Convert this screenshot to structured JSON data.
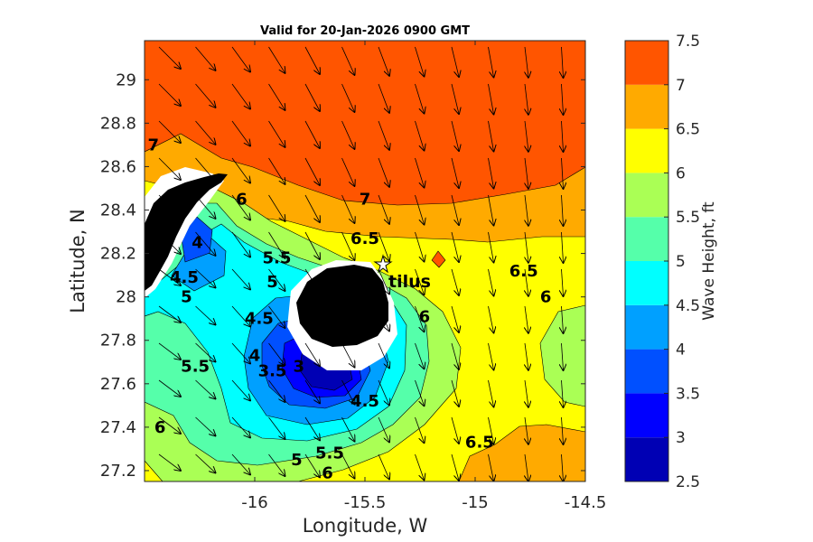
{
  "chart_data": {
    "type": "heatmap",
    "title": "Valid for 20-Jan-2026 0900 GMT",
    "xlabel": "Longitude, W",
    "ylabel": "Latitude, N",
    "colorbar_label": "Wave Height, ft",
    "xlim": [
      -16.5,
      -14.5
    ],
    "ylim": [
      27.15,
      29.18
    ],
    "x_ticks": [
      -16,
      -15.5,
      -15,
      -14.5
    ],
    "x_tick_labels": [
      "-16",
      "-15.5",
      "-15",
      "-14.5"
    ],
    "y_ticks": [
      27.2,
      27.4,
      27.6,
      27.8,
      28,
      28.2,
      28.4,
      28.6,
      28.8,
      29
    ],
    "y_tick_labels": [
      "27.2",
      "27.4",
      "27.6",
      "27.8",
      "28",
      "28.2",
      "28.4",
      "28.6",
      "28.8",
      "29"
    ],
    "colorbar": {
      "levels": [
        2.5,
        3,
        3.5,
        4,
        4.5,
        5,
        5.5,
        6,
        6.5,
        7,
        7.5
      ],
      "tick_labels": [
        "2.5",
        "3",
        "3.5",
        "4",
        "4.5",
        "5",
        "5.5",
        "6",
        "6.5",
        "7",
        "7.5"
      ],
      "colors": [
        "#0000b4",
        "#0000ff",
        "#0050ff",
        "#00a0ff",
        "#00ffff",
        "#55ffaa",
        "#aaff55",
        "#ffff00",
        "#ffaa00",
        "#ff5500"
      ]
    },
    "land_color": "#000000",
    "contour_labels": [
      {
        "text": "7",
        "lon": -16.46,
        "lat": 28.7
      },
      {
        "text": "6",
        "lon": -16.06,
        "lat": 28.45
      },
      {
        "text": "7",
        "lon": -15.5,
        "lat": 28.45
      },
      {
        "text": "6.5",
        "lon": -15.5,
        "lat": 28.27
      },
      {
        "text": "4",
        "lon": -16.26,
        "lat": 28.25
      },
      {
        "text": "5.5",
        "lon": -15.9,
        "lat": 28.18
      },
      {
        "text": "4.5",
        "lon": -16.32,
        "lat": 28.09
      },
      {
        "text": "5",
        "lon": -16.31,
        "lat": 28.0
      },
      {
        "text": "5",
        "lon": -15.92,
        "lat": 28.07
      },
      {
        "text": "6.5",
        "lon": -14.78,
        "lat": 28.12
      },
      {
        "text": "6",
        "lon": -14.68,
        "lat": 28.0
      },
      {
        "text": "6",
        "lon": -15.23,
        "lat": 27.91
      },
      {
        "text": "4.5",
        "lon": -15.98,
        "lat": 27.9
      },
      {
        "text": "4",
        "lon": -16.0,
        "lat": 27.73
      },
      {
        "text": "3.5",
        "lon": -15.92,
        "lat": 27.66
      },
      {
        "text": "3",
        "lon": -15.8,
        "lat": 27.68
      },
      {
        "text": "5.5",
        "lon": -16.27,
        "lat": 27.68
      },
      {
        "text": "4.5",
        "lon": -15.5,
        "lat": 27.52
      },
      {
        "text": "6",
        "lon": -16.43,
        "lat": 27.4
      },
      {
        "text": "6.5",
        "lon": -14.98,
        "lat": 27.33
      },
      {
        "text": "5.5",
        "lon": -15.66,
        "lat": 27.28
      },
      {
        "text": "5",
        "lon": -15.81,
        "lat": 27.25
      },
      {
        "text": "6",
        "lon": -15.67,
        "lat": 27.19
      }
    ],
    "station": {
      "name": "Nautilus",
      "visible_text": "tilus",
      "lon": -15.4,
      "lat": 28.15
    }
  }
}
